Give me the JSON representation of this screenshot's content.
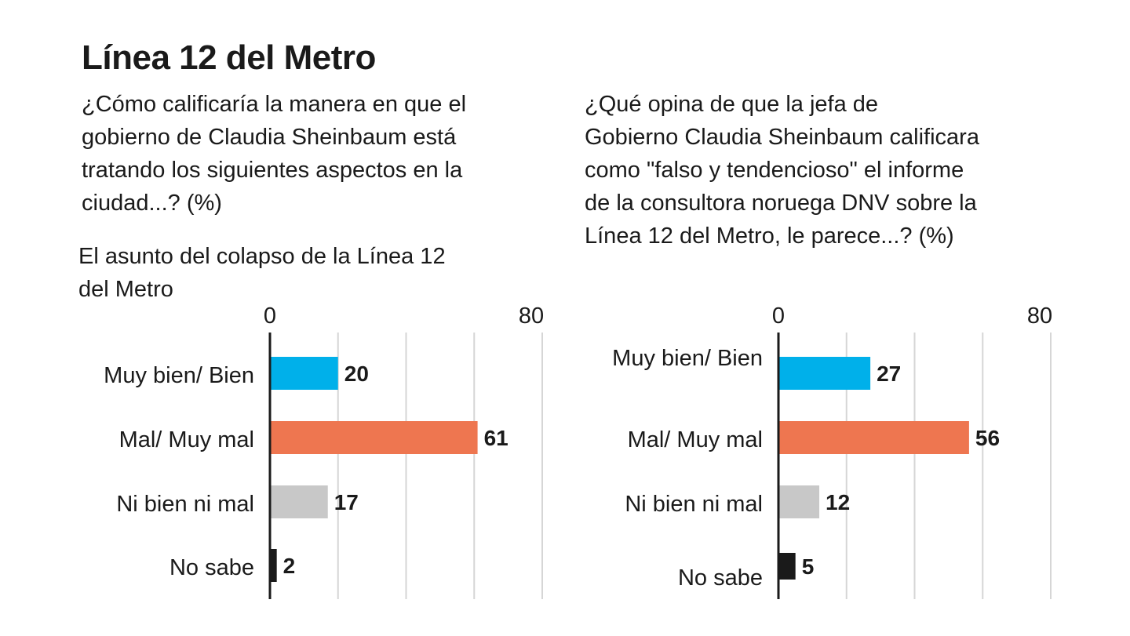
{
  "title": "Línea 12 del Metro",
  "colors": {
    "muy_bien": "#00b0ea",
    "mal": "#ee7650",
    "ni_bien": "#c8c8c8",
    "no_sabe": "#1a1a1a",
    "grid": "#d6d6d6",
    "axis": "#1a1a1a"
  },
  "chart_data": [
    {
      "type": "bar",
      "orientation": "horizontal",
      "title": "¿Cómo calificaría la manera en que el gobierno de Claudia Sheinbaum está tratando los siguientes aspectos en la ciudad...? (%)",
      "title_lines": [
        "¿Cómo calificaría la manera en que el",
        "gobierno de Claudia Sheinbaum está",
        "tratando los siguientes aspectos en la",
        "ciudad...?  (%)"
      ],
      "subtitle_lines": [
        "El asunto del colapso de la Línea 12",
        "del Metro"
      ],
      "categories": [
        "Muy bien/ Bien",
        "Mal/ Muy mal",
        "Ni bien ni mal",
        "No sabe"
      ],
      "values": [
        20,
        61,
        17,
        2
      ],
      "xlim": [
        0,
        80
      ],
      "tick_labels": [
        "0",
        "80"
      ],
      "grid": true
    },
    {
      "type": "bar",
      "orientation": "horizontal",
      "title": "¿Qué opina de que la jefa de Gobierno Claudia Sheinbaum calificara como \"falso y tendencioso\" el informe de la consultora noruega DNV sobre la Línea 12 del Metro, le parece...? (%)",
      "title_lines": [
        "¿Qué opina de que la jefa de",
        "Gobierno Claudia Sheinbaum calificara",
        "como \"falso y tendencioso\" el informe",
        "de la consultora noruega DNV sobre la",
        "Línea 12 del Metro, le parece...? (%)"
      ],
      "categories": [
        "Muy bien/ Bien",
        "Mal/ Muy mal",
        "Ni bien ni mal",
        "No sabe"
      ],
      "values": [
        27,
        56,
        12,
        5
      ],
      "xlim": [
        0,
        80
      ],
      "tick_labels": [
        "0",
        "80"
      ],
      "grid": true
    }
  ]
}
